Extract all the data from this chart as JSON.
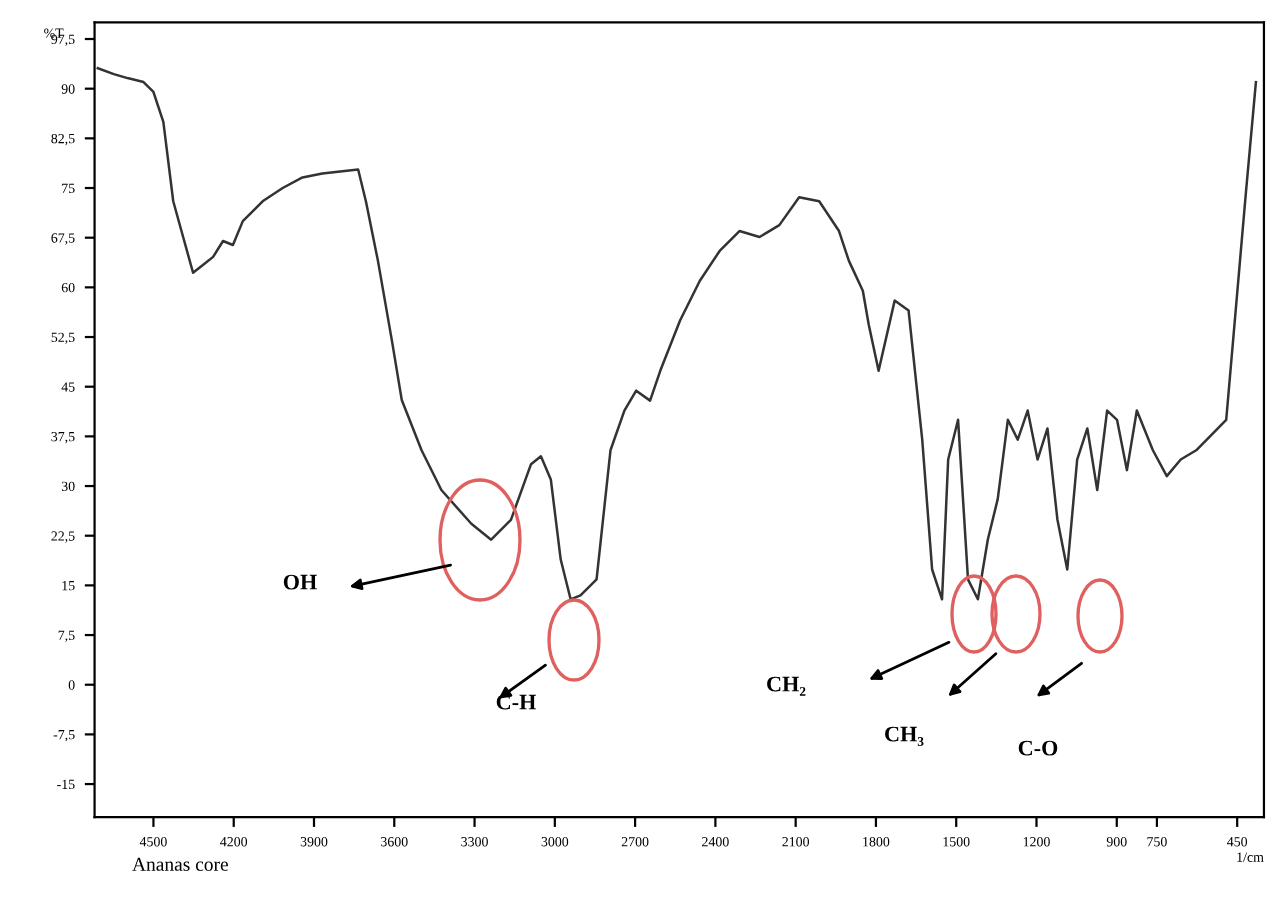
{
  "chart_data": {
    "type": "line",
    "xlabel": "1/cm",
    "ylabel": "%T",
    "x": [
      4708,
      4648,
      4597,
      4537,
      4500,
      4463,
      4426,
      4389,
      4352,
      4314,
      4277,
      4240,
      4203,
      4166,
      4092,
      4017,
      3943,
      3869,
      3735,
      3706,
      3661,
      3609,
      3572,
      3498,
      3424,
      3312,
      3238,
      3164,
      3089,
      3052,
      3015,
      2978,
      2941,
      2904,
      2844,
      2792,
      2740,
      2696,
      2644,
      2606,
      2532,
      2458,
      2384,
      2310,
      2235,
      2161,
      2087,
      2012,
      1938,
      1901,
      1849,
      1827,
      1790,
      1730,
      1678,
      1627,
      1590,
      1553,
      1530,
      1493,
      1456,
      1419,
      1382,
      1345,
      1307,
      1270,
      1233,
      1196,
      1159,
      1122,
      1085,
      1048,
      1010,
      973,
      936,
      899,
      862,
      825,
      765,
      713,
      661,
      603,
      491,
      417,
      380
    ],
    "series": [
      {
        "color": "#333333",
        "values": [
          93.1,
          92.2,
          91.6,
          91,
          89.5,
          85,
          73,
          67.6,
          62.2,
          63.4,
          64.6,
          67,
          66.4,
          70,
          73,
          75,
          76.6,
          77.2,
          77.8,
          73,
          64,
          52,
          43,
          35.4,
          29.4,
          24.3,
          21.9,
          24.9,
          33.3,
          34.5,
          31,
          18.9,
          12.9,
          13.5,
          15.9,
          35.4,
          41.4,
          44.4,
          42.9,
          47.4,
          55,
          61,
          65.5,
          68.5,
          67.6,
          69.4,
          73.6,
          73,
          68.5,
          64,
          59.5,
          54.4,
          47.4,
          58,
          56.5,
          37,
          17.4,
          12.9,
          34,
          40,
          15.9,
          12.9,
          21.9,
          28,
          40,
          37,
          41.4,
          34,
          38.7,
          25,
          17.4,
          34,
          38.7,
          29.4,
          41.4,
          40,
          32.4,
          41.4,
          35.4,
          31.5,
          34,
          35.4,
          40,
          74.5,
          91
        ]
      }
    ],
    "xlim": [
      4720,
      350
    ],
    "ylim": [
      -20,
      100
    ],
    "xticks": [
      4500,
      4200,
      3900,
      3600,
      3300,
      3000,
      2700,
      2400,
      2100,
      1800,
      1500,
      1200,
      900,
      750,
      450
    ],
    "yticks": [
      {
        "value": 97.5,
        "label": "97,5"
      },
      90,
      {
        "value": 82.5,
        "label": "82,5"
      },
      75,
      {
        "value": 67.5,
        "label": "67,5"
      },
      60,
      {
        "value": 52.5,
        "label": "52,5"
      },
      45,
      {
        "value": 37.5,
        "label": "37,5"
      },
      30,
      {
        "value": 22.5,
        "label": "22,5"
      },
      15,
      {
        "value": 7.5,
        "label": "7,5"
      },
      0,
      {
        "value": -7.5,
        "label": "-7,5"
      },
      -15
    ],
    "grid": false,
    "marker": "none",
    "line_style": "solid",
    "annotations": [
      "OH",
      "C-H",
      "CH₂",
      "CH₃",
      "C-O",
      "Ananas core"
    ]
  }
}
